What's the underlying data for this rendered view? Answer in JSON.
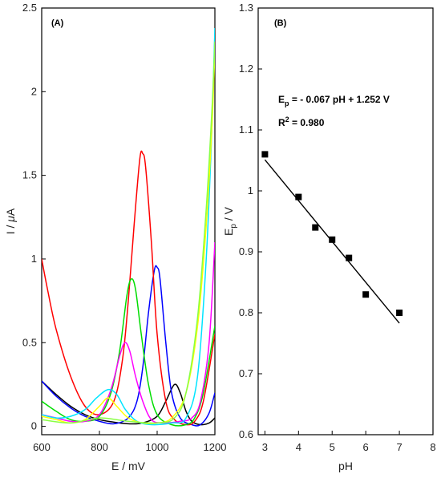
{
  "chart_data": [
    {
      "type": "line",
      "panel_label": "(A)",
      "xlabel": "E / mV",
      "ylabel_main": "I / ",
      "ylabel_greek": "μ",
      "ylabel_unit": "A",
      "xlim": [
        600,
        1200
      ],
      "ylim": [
        -0.05,
        2.5
      ],
      "x_ticks": [
        600,
        800,
        1000,
        1200
      ],
      "y_ticks": [
        0,
        0.5,
        1,
        1.5,
        2,
        2.5
      ],
      "y_tick_labels": [
        "0",
        "0.5",
        "1",
        "1.5",
        "2",
        "2.5"
      ],
      "series": [
        {
          "color": "#000000",
          "points": [
            [
              600,
              0.27
            ],
            [
              650,
              0.19
            ],
            [
              700,
              0.12
            ],
            [
              750,
              0.07
            ],
            [
              800,
              0.04
            ],
            [
              850,
              0.025
            ],
            [
              900,
              0.015
            ],
            [
              950,
              0.02
            ],
            [
              1000,
              0.06
            ],
            [
              1030,
              0.15
            ],
            [
              1060,
              0.25
            ],
            [
              1080,
              0.2
            ],
            [
              1100,
              0.09
            ],
            [
              1120,
              0.03
            ],
            [
              1150,
              0.01
            ],
            [
              1180,
              0.02
            ],
            [
              1200,
              0.05
            ]
          ]
        },
        {
          "color": "#0000ff",
          "points": [
            [
              600,
              0.27
            ],
            [
              650,
              0.18
            ],
            [
              700,
              0.11
            ],
            [
              750,
              0.06
            ],
            [
              800,
              0.03
            ],
            [
              850,
              0.015
            ],
            [
              900,
              0.05
            ],
            [
              930,
              0.15
            ],
            [
              950,
              0.35
            ],
            [
              970,
              0.68
            ],
            [
              990,
              0.93
            ],
            [
              1000,
              0.95
            ],
            [
              1010,
              0.88
            ],
            [
              1030,
              0.5
            ],
            [
              1050,
              0.2
            ],
            [
              1080,
              0.05
            ],
            [
              1120,
              0.01
            ],
            [
              1150,
              0.01
            ],
            [
              1180,
              0.08
            ],
            [
              1200,
              0.2
            ]
          ]
        },
        {
          "color": "#ff0000",
          "points": [
            [
              600,
              1.0
            ],
            [
              620,
              0.82
            ],
            [
              650,
              0.58
            ],
            [
              700,
              0.3
            ],
            [
              750,
              0.12
            ],
            [
              800,
              0.07
            ],
            [
              850,
              0.15
            ],
            [
              880,
              0.4
            ],
            [
              900,
              0.75
            ],
            [
              920,
              1.2
            ],
            [
              940,
              1.6
            ],
            [
              950,
              1.63
            ],
            [
              960,
              1.55
            ],
            [
              980,
              1.1
            ],
            [
              1000,
              0.55
            ],
            [
              1030,
              0.15
            ],
            [
              1060,
              0.04
            ],
            [
              1100,
              0.01
            ],
            [
              1130,
              0.03
            ],
            [
              1160,
              0.15
            ],
            [
              1200,
              0.55
            ]
          ]
        },
        {
          "color": "#00dd00",
          "points": [
            [
              600,
              0.15
            ],
            [
              650,
              0.09
            ],
            [
              700,
              0.04
            ],
            [
              750,
              0.03
            ],
            [
              800,
              0.06
            ],
            [
              840,
              0.2
            ],
            [
              870,
              0.45
            ],
            [
              895,
              0.78
            ],
            [
              910,
              0.88
            ],
            [
              925,
              0.82
            ],
            [
              945,
              0.55
            ],
            [
              970,
              0.25
            ],
            [
              1000,
              0.07
            ],
            [
              1050,
              0.01
            ],
            [
              1100,
              0.01
            ],
            [
              1130,
              0.05
            ],
            [
              1160,
              0.2
            ],
            [
              1200,
              0.6
            ]
          ]
        },
        {
          "color": "#ff00ff",
          "points": [
            [
              600,
              0.07
            ],
            [
              650,
              0.05
            ],
            [
              700,
              0.03
            ],
            [
              750,
              0.03
            ],
            [
              800,
              0.07
            ],
            [
              840,
              0.22
            ],
            [
              870,
              0.42
            ],
            [
              888,
              0.5
            ],
            [
              905,
              0.45
            ],
            [
              925,
              0.3
            ],
            [
              950,
              0.15
            ],
            [
              980,
              0.04
            ],
            [
              1020,
              0.02
            ],
            [
              1080,
              0.03
            ],
            [
              1120,
              0.05
            ],
            [
              1150,
              0.15
            ],
            [
              1180,
              0.5
            ],
            [
              1200,
              1.1
            ]
          ]
        },
        {
          "color": "#00e5ff",
          "points": [
            [
              600,
              0.07
            ],
            [
              650,
              0.05
            ],
            [
              700,
              0.06
            ],
            [
              750,
              0.1
            ],
            [
              790,
              0.17
            ],
            [
              830,
              0.22
            ],
            [
              860,
              0.19
            ],
            [
              890,
              0.1
            ],
            [
              930,
              0.03
            ],
            [
              980,
              0.01
            ],
            [
              1050,
              0.02
            ],
            [
              1100,
              0.05
            ],
            [
              1140,
              0.3
            ],
            [
              1170,
              1.0
            ],
            [
              1190,
              1.8
            ],
            [
              1200,
              2.38
            ]
          ]
        },
        {
          "color": "#ffff00",
          "points": [
            [
              600,
              0.06
            ],
            [
              650,
              0.04
            ],
            [
              700,
              0.02
            ],
            [
              750,
              0.04
            ],
            [
              800,
              0.12
            ],
            [
              830,
              0.17
            ],
            [
              860,
              0.12
            ],
            [
              900,
              0.05
            ],
            [
              950,
              0.02
            ],
            [
              1000,
              0.02
            ],
            [
              1050,
              0.05
            ],
            [
              1100,
              0.2
            ],
            [
              1140,
              0.6
            ],
            [
              1170,
              1.2
            ],
            [
              1190,
              1.8
            ],
            [
              1200,
              2.25
            ]
          ]
        },
        {
          "color": "#88ff44",
          "points": [
            [
              600,
              0.04
            ],
            [
              700,
              0.02
            ],
            [
              800,
              0.05
            ],
            [
              900,
              0.03
            ],
            [
              1000,
              0.02
            ],
            [
              1060,
              0.05
            ],
            [
              1100,
              0.2
            ],
            [
              1140,
              0.65
            ],
            [
              1170,
              1.3
            ],
            [
              1190,
              1.9
            ],
            [
              1200,
              2.3
            ]
          ]
        }
      ]
    },
    {
      "type": "scatter",
      "panel_label": "(B)",
      "xlabel": "pH",
      "ylabel_main": "E",
      "ylabel_sub": "p",
      "ylabel_unit": " / V",
      "xlim": [
        2.8,
        8
      ],
      "ylim": [
        0.6,
        1.3
      ],
      "x_ticks": [
        3,
        4,
        5,
        6,
        7,
        8
      ],
      "y_ticks": [
        0.6,
        0.7,
        0.8,
        0.9,
        1.0,
        1.1,
        1.2,
        1.3
      ],
      "y_tick_labels": [
        "0.6",
        "0.7",
        "0.8",
        "0.9",
        "1",
        "1.1",
        "1.2",
        "1.3"
      ],
      "points": [
        [
          3,
          1.06
        ],
        [
          4,
          0.99
        ],
        [
          4.5,
          0.94
        ],
        [
          5,
          0.92
        ],
        [
          5.5,
          0.89
        ],
        [
          6,
          0.83
        ],
        [
          7,
          0.8
        ]
      ],
      "fit": {
        "slope": -0.067,
        "intercept": 1.252,
        "x_range": [
          3,
          7
        ]
      },
      "equation_main": "E",
      "equation_sub": "p",
      "equation_rest": " = - 0.067 pH + 1.252 V",
      "r2_main": "R",
      "r2_sup": "2",
      "r2_rest": " = 0.980"
    }
  ]
}
